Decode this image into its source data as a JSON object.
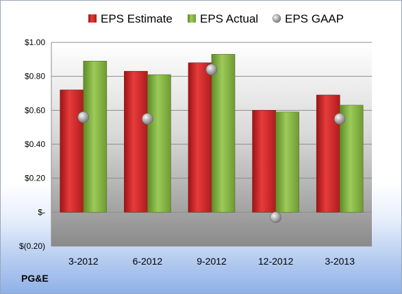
{
  "company_label": "PG&E",
  "colors": {
    "estimate": "#d42a2a",
    "actual": "#8db84a",
    "gaap": "#a9a9a9"
  },
  "chart_data": {
    "type": "bar",
    "categories": [
      "3-2012",
      "6-2012",
      "9-2012",
      "12-2012",
      "3-2013"
    ],
    "series": [
      {
        "name": "EPS Estimate",
        "type": "bar",
        "values": [
          0.72,
          0.83,
          0.88,
          0.6,
          0.69
        ]
      },
      {
        "name": "EPS Actual",
        "type": "bar",
        "values": [
          0.89,
          0.81,
          0.93,
          0.59,
          0.63
        ]
      },
      {
        "name": "EPS GAAP",
        "type": "scatter",
        "values": [
          0.56,
          0.55,
          0.84,
          -0.03,
          0.55
        ]
      }
    ],
    "y_ticks": [
      {
        "value": 1.0,
        "label": "$1.00"
      },
      {
        "value": 0.8,
        "label": "$0.80"
      },
      {
        "value": 0.6,
        "label": "$0.60"
      },
      {
        "value": 0.4,
        "label": "$0.40"
      },
      {
        "value": 0.2,
        "label": "$0.20"
      },
      {
        "value": 0.0,
        "label": "$-"
      },
      {
        "value": -0.2,
        "label": "$(0.20)"
      }
    ],
    "ylim": [
      -0.2,
      1.0
    ],
    "grid": true,
    "legend_position": "top"
  }
}
